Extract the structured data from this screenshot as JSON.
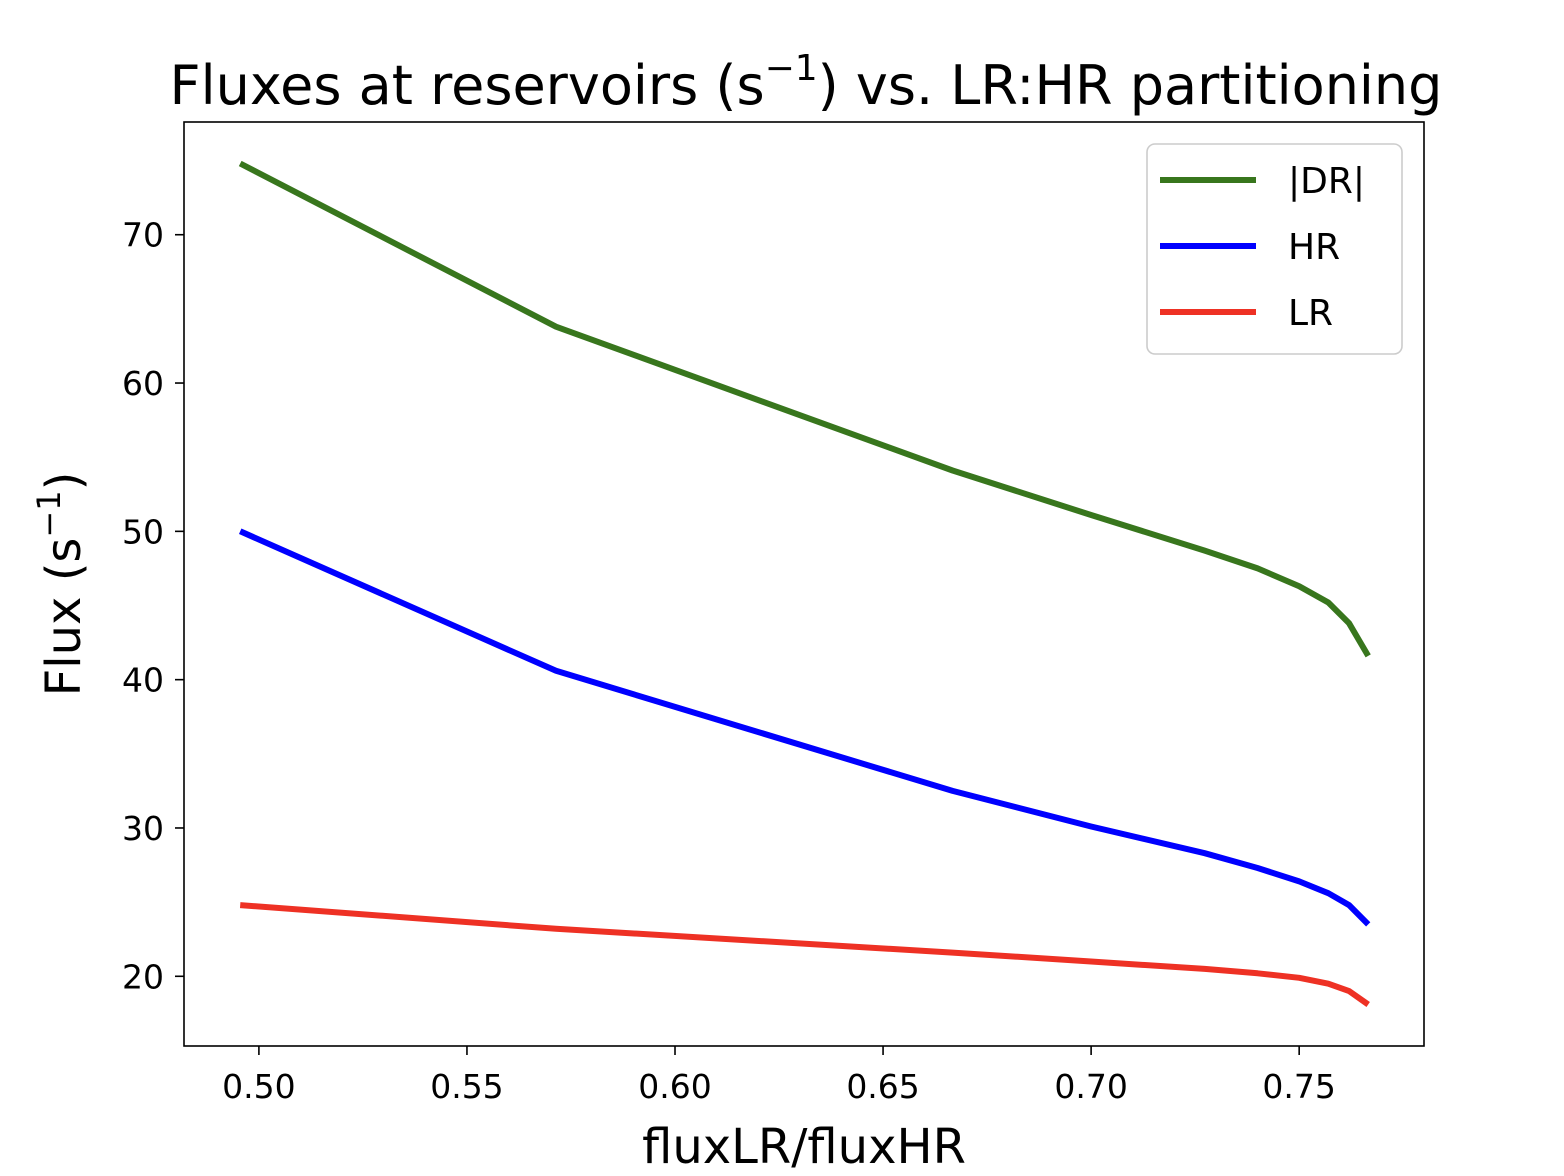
{
  "chart_data": {
    "type": "line",
    "title_main": "Fluxes at reservoirs (s",
    "title_sup": "−1",
    "title_tail": ") vs. LR:HR partitioning",
    "xlabel": "fluxLR/fluxHR",
    "ylabel_main": "Flux (s",
    "ylabel_sup": "−1",
    "ylabel_tail": ")",
    "xlim": [
      0.482,
      0.78
    ],
    "ylim": [
      15.3,
      77.6
    ],
    "xticks": [
      0.5,
      0.55,
      0.6,
      0.65,
      0.7,
      0.75
    ],
    "xtick_labels": [
      "0.50",
      "0.55",
      "0.60",
      "0.65",
      "0.70",
      "0.75"
    ],
    "yticks": [
      20,
      30,
      40,
      50,
      60,
      70
    ],
    "ytick_labels": [
      "20",
      "30",
      "40",
      "50",
      "60",
      "70"
    ],
    "grid": false,
    "legend_position": "top-right",
    "series": [
      {
        "name": "|DR|",
        "color": "#38761d",
        "points": [
          [
            0.4955,
            74.8
          ],
          [
            0.5714,
            63.8
          ],
          [
            0.6667,
            54.1
          ],
          [
            0.7,
            51.1
          ],
          [
            0.7273,
            48.7
          ],
          [
            0.74,
            47.5
          ],
          [
            0.75,
            46.3
          ],
          [
            0.757,
            45.2
          ],
          [
            0.762,
            43.8
          ],
          [
            0.7666,
            41.6
          ]
        ]
      },
      {
        "name": "HR",
        "color": "#0000ff",
        "points": [
          [
            0.4955,
            50.0
          ],
          [
            0.5714,
            40.6
          ],
          [
            0.6667,
            32.5
          ],
          [
            0.7,
            30.1
          ],
          [
            0.7273,
            28.3
          ],
          [
            0.74,
            27.3
          ],
          [
            0.75,
            26.4
          ],
          [
            0.757,
            25.6
          ],
          [
            0.762,
            24.8
          ],
          [
            0.7666,
            23.5
          ]
        ]
      },
      {
        "name": "LR",
        "color": "#ee3124",
        "points": [
          [
            0.4955,
            24.8
          ],
          [
            0.5714,
            23.2
          ],
          [
            0.6667,
            21.6
          ],
          [
            0.7,
            21.0
          ],
          [
            0.7273,
            20.5
          ],
          [
            0.74,
            20.2
          ],
          [
            0.75,
            19.9
          ],
          [
            0.757,
            19.5
          ],
          [
            0.762,
            19.0
          ],
          [
            0.7666,
            18.1
          ]
        ]
      }
    ]
  }
}
